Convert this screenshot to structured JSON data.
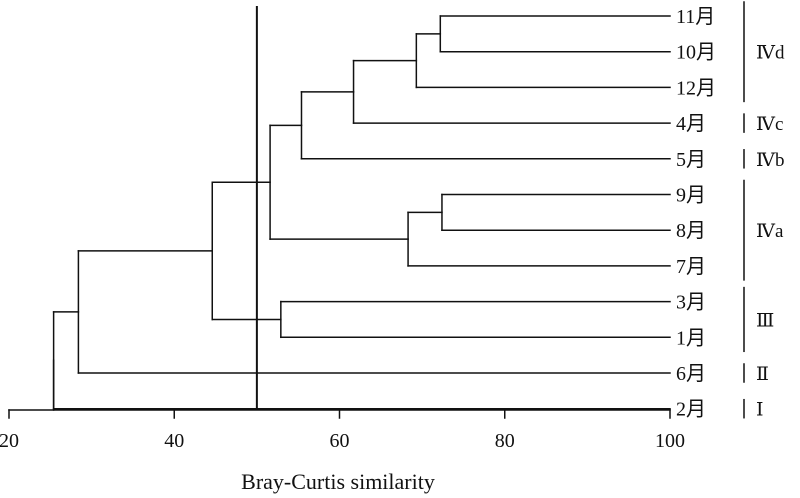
{
  "chart_data": {
    "type": "dendrogram",
    "xlabel": "Bray-Curtis similarity",
    "xlim": [
      20,
      100
    ],
    "xticks": [
      20,
      40,
      60,
      80,
      100
    ],
    "cut_line": 50,
    "leaves": [
      "11月",
      "10月",
      "12月",
      "4月",
      "5月",
      "9月",
      "8月",
      "7月",
      "3月",
      "1月",
      "6月",
      "2月"
    ],
    "merges": [
      {
        "id": "m1",
        "left": "11月",
        "right": "10月",
        "similarity": 72.2
      },
      {
        "id": "m2",
        "left": "m1",
        "right": "12月",
        "similarity": 69.3
      },
      {
        "id": "m3",
        "left": "m2",
        "right": "4月",
        "similarity": 61.7
      },
      {
        "id": "m4",
        "left": "m3",
        "right": "5月",
        "similarity": 55.4
      },
      {
        "id": "m5",
        "left": "9月",
        "right": "8月",
        "similarity": 72.4
      },
      {
        "id": "m6",
        "left": "m5",
        "right": "7月",
        "similarity": 68.3
      },
      {
        "id": "m7",
        "left": "m4",
        "right": "m6",
        "similarity": 51.6
      },
      {
        "id": "m8",
        "left": "3月",
        "right": "1月",
        "similarity": 52.9
      },
      {
        "id": "m9",
        "left": "m7",
        "right": "m8",
        "similarity": 44.6
      },
      {
        "id": "m10",
        "left": "m9",
        "right": "6月",
        "similarity": 28.4
      },
      {
        "id": "m11",
        "left": "m10",
        "right": "2月",
        "similarity": 25.4
      }
    ],
    "groups": [
      {
        "label": "Ⅳd",
        "leaves": [
          "11月",
          "10月",
          "12月"
        ]
      },
      {
        "label": "Ⅳc",
        "leaves": [
          "4月"
        ]
      },
      {
        "label": "Ⅳb",
        "leaves": [
          "5月"
        ]
      },
      {
        "label": "Ⅳa",
        "leaves": [
          "9月",
          "8月",
          "7月"
        ]
      },
      {
        "label": "Ⅲ",
        "leaves": [
          "3月",
          "1月"
        ]
      },
      {
        "label": "Ⅱ",
        "leaves": [
          "6月"
        ]
      },
      {
        "label": "Ⅰ",
        "leaves": [
          "2月"
        ]
      }
    ]
  }
}
